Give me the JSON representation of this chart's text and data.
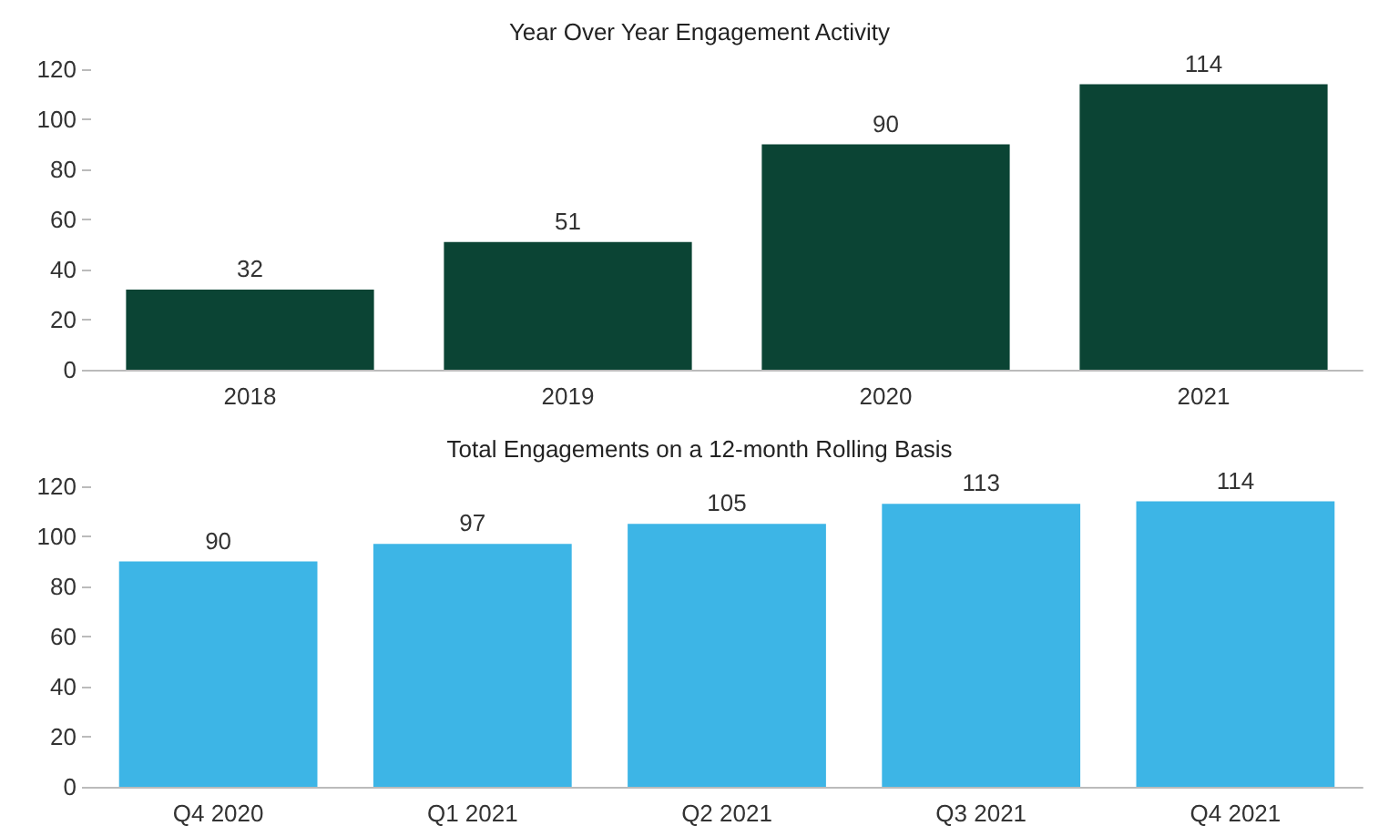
{
  "chart_data": [
    {
      "type": "bar",
      "title": "Year Over Year Engagement Activity",
      "categories": [
        "2018",
        "2019",
        "2020",
        "2021"
      ],
      "series": [
        {
          "color": "#0b4434",
          "values": [
            32,
            51,
            90,
            114
          ]
        }
      ],
      "ylim": [
        0,
        120
      ],
      "yticks": [
        0,
        20,
        40,
        60,
        80,
        100,
        120
      ],
      "data_labels": true
    },
    {
      "type": "bar",
      "title": "Total Engagements on a 12-month Rolling Basis",
      "categories": [
        "Q4 2020",
        "Q1 2021",
        "Q2 2021",
        "Q3 2021",
        "Q4 2021"
      ],
      "series": [
        {
          "color": "#3db5e6",
          "values": [
            90,
            97,
            105,
            113,
            114
          ]
        }
      ],
      "ylim": [
        0,
        120
      ],
      "yticks": [
        0,
        20,
        40,
        60,
        80,
        100,
        120
      ],
      "data_labels": true
    }
  ]
}
